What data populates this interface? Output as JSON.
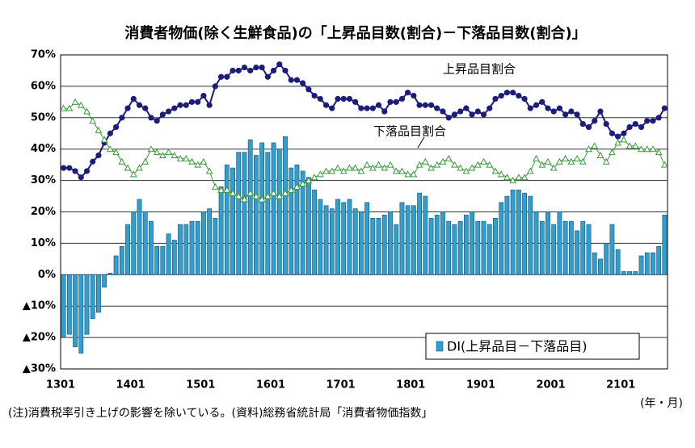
{
  "chart_data": {
    "type": "bar",
    "title": "消費者物価(除く生鮮食品)の「上昇品目数(割合)－下落品目数(割合)」",
    "x_unit": "(年・月)",
    "note": "(注)消費税率引き上げの影響を除いている。(資料)総務省統計局「消費者物価指数」",
    "categories": [
      "1301",
      null,
      null,
      null,
      null,
      null,
      null,
      null,
      null,
      null,
      null,
      null,
      "1401",
      null,
      null,
      null,
      null,
      null,
      null,
      null,
      null,
      null,
      null,
      null,
      "1501",
      null,
      null,
      null,
      null,
      null,
      null,
      null,
      null,
      null,
      null,
      null,
      "1601",
      null,
      null,
      null,
      null,
      null,
      null,
      null,
      null,
      null,
      null,
      null,
      "1701",
      null,
      null,
      null,
      null,
      null,
      null,
      null,
      null,
      null,
      null,
      null,
      "1801",
      null,
      null,
      null,
      null,
      null,
      null,
      null,
      null,
      null,
      null,
      null,
      "1901",
      null,
      null,
      null,
      null,
      null,
      null,
      null,
      null,
      null,
      null,
      null,
      "2001",
      null,
      null,
      null,
      null,
      null,
      null,
      null,
      null,
      null,
      null,
      null,
      "2101",
      null,
      null,
      null,
      null,
      null,
      null,
      null
    ],
    "ylim": [
      -30,
      70
    ],
    "yticks": [
      {
        "value": -30,
        "label": "▲30%"
      },
      {
        "value": -20,
        "label": "▲20%"
      },
      {
        "value": -10,
        "label": "▲10%"
      },
      {
        "value": 0,
        "label": "0%"
      },
      {
        "value": 10,
        "label": "10%"
      },
      {
        "value": 20,
        "label": "20%"
      },
      {
        "value": 30,
        "label": "30%"
      },
      {
        "value": 40,
        "label": "40%"
      },
      {
        "value": 50,
        "label": "50%"
      },
      {
        "value": 60,
        "label": "60%"
      },
      {
        "value": 70,
        "label": "70%"
      }
    ],
    "grid": true,
    "legend": "lower right",
    "series": [
      {
        "name": "DI(上昇品目－下落品目)",
        "type": "bar",
        "color": "#2f9fd0",
        "values": [
          -20,
          -19,
          -23,
          -25,
          -19,
          -14,
          -12,
          -4,
          0.5,
          6,
          9,
          16,
          20,
          24,
          20,
          17,
          9,
          9,
          13,
          11,
          16,
          16,
          17,
          17,
          20,
          21,
          18,
          28,
          35,
          34,
          39,
          39,
          43,
          38,
          42,
          39,
          42,
          40,
          44,
          34,
          35,
          33,
          31,
          27,
          24,
          22,
          21,
          24,
          23,
          24,
          21,
          20,
          23,
          18,
          18,
          19,
          20,
          16,
          23,
          22,
          22,
          26,
          25,
          18,
          19,
          20,
          17,
          16,
          17,
          19,
          20,
          17,
          17,
          16,
          18,
          23,
          25,
          27,
          27,
          26,
          25,
          20,
          17,
          20,
          16,
          20,
          17,
          17,
          14,
          17,
          16,
          7,
          5,
          10,
          16,
          8,
          1,
          1,
          1,
          6,
          7,
          7,
          9,
          19
        ]
      },
      {
        "name": "上昇品目割合",
        "type": "line",
        "color": "#1c1c7a",
        "values": [
          34,
          34,
          33,
          31,
          33,
          36,
          38,
          42,
          45,
          47,
          50,
          53,
          56,
          54,
          53,
          50,
          49,
          51,
          52,
          53,
          54,
          54,
          55,
          55,
          57,
          54,
          60,
          63,
          63,
          65,
          65,
          66,
          65,
          66,
          66,
          63,
          65,
          67,
          65,
          62,
          62,
          61,
          59,
          57,
          56,
          54,
          53,
          56,
          56,
          56,
          55,
          53,
          53,
          53,
          54,
          52,
          55,
          55,
          56,
          58,
          57,
          54,
          54,
          54,
          53,
          52,
          50,
          51,
          52,
          53,
          51,
          52,
          51,
          53,
          56,
          57,
          58,
          58,
          57,
          56,
          53,
          54,
          55,
          53,
          52,
          53,
          51,
          52,
          51,
          48,
          47,
          49,
          52,
          48,
          45,
          44,
          45,
          47,
          48,
          47,
          49,
          49,
          50,
          53
        ]
      },
      {
        "name": "下落品目割合",
        "type": "line",
        "color": "#3a9a3a",
        "values": [
          53,
          53,
          55,
          54,
          52,
          49,
          46,
          43,
          40,
          39,
          36,
          34,
          32,
          34,
          36,
          40,
          39,
          38,
          39,
          38,
          37,
          37,
          36,
          35,
          36,
          33,
          28,
          27,
          27,
          26,
          25,
          24,
          26,
          25,
          24,
          25,
          26,
          25,
          26,
          27,
          28,
          29,
          30,
          31,
          32,
          33,
          33,
          34,
          33,
          34,
          34,
          33,
          35,
          34,
          35,
          34,
          35,
          33,
          33,
          32,
          32,
          35,
          36,
          34,
          35,
          36,
          37,
          35,
          34,
          33,
          34,
          35,
          36,
          35,
          33,
          32,
          31,
          30,
          31,
          31,
          33,
          37,
          35,
          36,
          34,
          36,
          37,
          36,
          37,
          36,
          40,
          41,
          38,
          36,
          39,
          42,
          43,
          41,
          41,
          40,
          40,
          40,
          39,
          35
        ]
      }
    ]
  }
}
